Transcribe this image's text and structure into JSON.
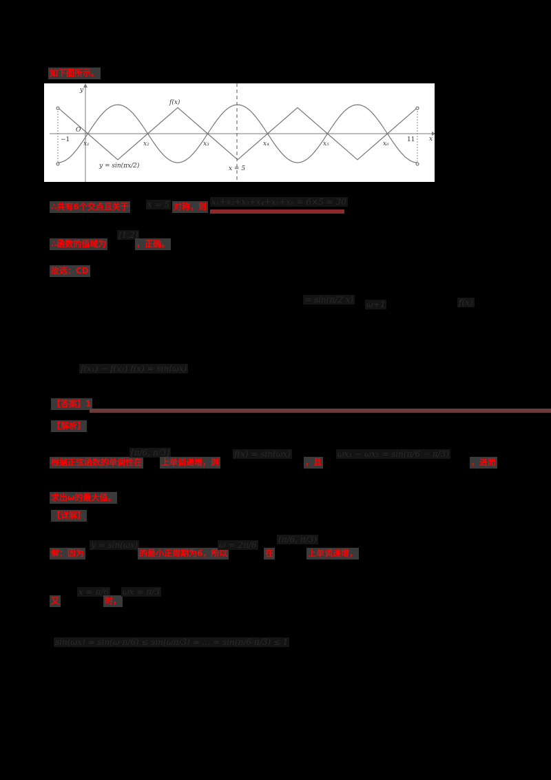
{
  "intro": "如下图所示。",
  "figure": {
    "curve_labels": {
      "f": "f(x)",
      "sin": "y = sin(πx/2)"
    },
    "axis_labels": {
      "x": "x",
      "y": "y",
      "origin": "O"
    },
    "tick_labels": {
      "left": "−1",
      "right": "11"
    },
    "intersections": [
      "x₁",
      "x₂",
      "x₃",
      "x₄",
      "x₅",
      "x₆"
    ],
    "symmetry_line": "x = 5"
  },
  "chart_data": {
    "type": "line",
    "title": "",
    "xlabel": "x",
    "ylabel": "y",
    "xlim": [
      -1,
      11
    ],
    "ylim": [
      -1,
      1
    ],
    "grid": false,
    "series": [
      {
        "name": "y = sin(πx/2)",
        "x": [
          -1,
          0,
          1,
          2,
          3,
          4,
          5,
          6,
          7,
          8,
          9,
          10,
          11
        ],
        "y": [
          -1,
          0,
          1,
          0,
          -1,
          0,
          1,
          0,
          -1,
          0,
          1,
          0,
          -1
        ]
      },
      {
        "name": "f(x)",
        "x": [
          -1,
          0,
          1,
          2,
          3,
          4,
          5,
          6,
          7,
          8,
          9,
          10,
          11
        ],
        "y": [
          0.9,
          0,
          -0.9,
          0,
          0.9,
          0,
          -0.9,
          0,
          0.9,
          0,
          -0.9,
          0,
          0.9
        ]
      }
    ],
    "annotations": [
      "x₁",
      "x₂",
      "x₃",
      "x₄",
      "x₅",
      "x₆",
      "x = 5",
      "O",
      "−1",
      "11"
    ]
  },
  "lines": {
    "l1": "∴共有6个交点且关于",
    "l1_math": "x = 5",
    "l1_b": "对称，则",
    "l1_math2": "x₁+x₂+x₃+x₄+x₅+x₆ = 6×5 = 30",
    "l2": "∴函数的值域为",
    "l2_math": "[1,2]",
    "l2_b": "，正确。",
    "l3": "故选：CD",
    "m1": "= sin(π/2 x)",
    "m2": "ω+1",
    "m3": "f(x)",
    "m4": "f(x₁) − f(x₂)   f(x) = sin(ωx)",
    "answer_label": "【答案】1",
    "analysis_label": "【解析】",
    "l4": "根据正弦函数的单调性在",
    "l4_math1": "[π/6, π/3]",
    "l4_b": "上单调递增，则",
    "l4_math2": "f(x) = sin(ωx)",
    "l4_c": "，且",
    "l4_math3": "ωx₁ − ωx₂ = sin(π/6 − π/3)",
    "l4_d": "，进而",
    "l5": "求出ω的最大值。",
    "detail_label": "【详解】",
    "l6": "解：因为",
    "l6_math1": "y = sin(ωx)",
    "l6_b": "的最小正周期为6，所以",
    "l6_math2": "ω = 2π/6",
    "l6_c": "在",
    "l6_math3": "(π/6, π/3)",
    "l6_d": "上单调递增，",
    "l7_a": "又",
    "l7_math1": "x = π/6",
    "l7_b": "时，",
    "l7_math2": "ωx = π/3",
    "l8_math": "sin(ωx) = sin(ω·π/6) ≤ sin(ωπ/3) = … = sin(π/6·π/3) ≤ 1"
  },
  "colors": {
    "text_highlight": "#ff0000",
    "rule": "#6e3b3b",
    "rule2": "#8b2a2a",
    "background": "#000000"
  }
}
